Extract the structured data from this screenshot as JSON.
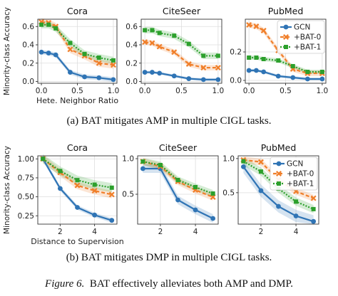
{
  "figure": {
    "caption_a": "(a) BAT mitigates AMP in multiple CIGL tasks.",
    "caption_b": "(b) BAT mitigates DMP in multiple CIGL tasks.",
    "fig_label": "Figure 6.",
    "fig_text": "BAT effectively alleviates both AMP and DMP."
  },
  "colors": {
    "GCN": "#2f74b5",
    "BAT-0": "#f07f2a",
    "BAT-1": "#2ca02c"
  },
  "chart_data": [
    {
      "type": "line",
      "row": "a",
      "title": "Cora",
      "xlabel": "Hete. Neighbor Ratio",
      "ylabel": "Minority-class Accuracy",
      "x": [
        0.0,
        0.1,
        0.2,
        0.4,
        0.6,
        0.8,
        1.0
      ],
      "xticks": [
        0.0,
        0.5,
        1.0
      ],
      "xticklabels": [
        "0.0",
        "0.5",
        "1.0"
      ],
      "yticks": [
        0.0,
        0.2,
        0.4,
        0.6
      ],
      "yticklabels": [
        "0.0",
        "0.2",
        "0.4",
        "0.6"
      ],
      "xlim": [
        -0.05,
        1.05
      ],
      "ylim": [
        -0.02,
        0.68
      ],
      "grid": true,
      "legend": false,
      "series": [
        {
          "name": "GCN",
          "values": [
            0.32,
            0.31,
            0.29,
            0.1,
            0.05,
            0.04,
            0.02
          ],
          "band": 0.025
        },
        {
          "name": "+BAT-0",
          "values": [
            0.65,
            0.64,
            0.6,
            0.35,
            0.28,
            0.2,
            0.18
          ],
          "band": 0.04
        },
        {
          "name": "+BAT-1",
          "values": [
            0.62,
            0.62,
            0.58,
            0.42,
            0.3,
            0.26,
            0.23
          ],
          "band": 0.04
        }
      ]
    },
    {
      "type": "line",
      "row": "a",
      "title": "CiteSeer",
      "xlabel": "",
      "ylabel": "",
      "x": [
        0.0,
        0.1,
        0.2,
        0.4,
        0.6,
        0.8,
        1.0
      ],
      "xticks": [
        0.0,
        0.5,
        1.0
      ],
      "xticklabels": [
        "0.0",
        "0.5",
        "1.0"
      ],
      "yticks": [
        0.0,
        0.2,
        0.4,
        0.6
      ],
      "yticklabels": [
        "0.0",
        "0.2",
        "0.4",
        "0.6"
      ],
      "xlim": [
        -0.05,
        1.05
      ],
      "ylim": [
        -0.02,
        0.68
      ],
      "grid": true,
      "legend": false,
      "series": [
        {
          "name": "GCN",
          "values": [
            0.1,
            0.1,
            0.09,
            0.06,
            0.03,
            0.02,
            0.02
          ],
          "band": 0.015
        },
        {
          "name": "+BAT-0",
          "values": [
            0.43,
            0.42,
            0.38,
            0.32,
            0.19,
            0.15,
            0.15
          ],
          "band": 0.03
        },
        {
          "name": "+BAT-1",
          "values": [
            0.56,
            0.56,
            0.53,
            0.5,
            0.41,
            0.28,
            0.28
          ],
          "band": 0.035
        }
      ]
    },
    {
      "type": "line",
      "row": "a",
      "title": "PubMed",
      "xlabel": "",
      "ylabel": "",
      "x": [
        0.0,
        0.1,
        0.2,
        0.4,
        0.6,
        0.8,
        1.0
      ],
      "xticks": [
        0.0,
        0.5,
        1.0
      ],
      "xticklabels": [
        "0.0",
        "0.5",
        "1.0"
      ],
      "yticks": [
        0.0,
        0.2
      ],
      "yticklabels": [
        "0.0",
        "0.2"
      ],
      "xlim": [
        -0.05,
        1.05
      ],
      "ylim": [
        -0.02,
        0.43
      ],
      "grid": true,
      "legend": "top-right",
      "series": [
        {
          "name": "GCN",
          "values": [
            0.07,
            0.07,
            0.06,
            0.03,
            0.02,
            0.01,
            0.01
          ],
          "band": 0.01
        },
        {
          "name": "+BAT-0",
          "values": [
            0.39,
            0.38,
            0.35,
            0.21,
            0.08,
            0.05,
            0.05
          ],
          "band": 0.02
        },
        {
          "name": "+BAT-1",
          "values": [
            0.16,
            0.16,
            0.15,
            0.14,
            0.1,
            0.06,
            0.06
          ],
          "band": 0.015
        }
      ]
    },
    {
      "type": "line",
      "row": "b",
      "title": "Cora",
      "xlabel": "Distance to Supervision",
      "ylabel": "Minority-class Accuracy",
      "x": [
        1,
        2,
        3,
        4,
        5
      ],
      "xticks": [
        2,
        4
      ],
      "xticklabels": [
        "2",
        "4"
      ],
      "yticks": [
        0.25,
        0.5,
        0.75,
        1.0
      ],
      "yticklabels": [
        "0.25",
        "0.50",
        "0.75",
        "1.00"
      ],
      "xlim": [
        0.7,
        5.3
      ],
      "ylim": [
        0.14,
        1.04
      ],
      "grid": true,
      "legend": false,
      "series": [
        {
          "name": "GCN",
          "values": [
            1.0,
            0.61,
            0.36,
            0.26,
            0.19
          ],
          "band": 0.03
        },
        {
          "name": "+BAT-0",
          "values": [
            1.0,
            0.82,
            0.65,
            0.58,
            0.53
          ],
          "band": 0.05
        },
        {
          "name": "+BAT-1",
          "values": [
            1.0,
            0.84,
            0.72,
            0.66,
            0.62
          ],
          "band": 0.06
        }
      ]
    },
    {
      "type": "line",
      "row": "b",
      "title": "CiteSeer",
      "xlabel": "",
      "ylabel": "",
      "x": [
        1,
        2,
        3,
        4,
        5
      ],
      "xticks": [
        2,
        4
      ],
      "xticklabels": [
        "2",
        "4"
      ],
      "yticks": [
        0.5,
        1.0
      ],
      "yticklabels": [
        "0.5",
        "1.0"
      ],
      "xlim": [
        0.7,
        5.3
      ],
      "ylim": [
        0.08,
        1.04
      ],
      "grid": true,
      "legend": false,
      "series": [
        {
          "name": "GCN",
          "values": [
            0.86,
            0.86,
            0.42,
            0.28,
            0.16
          ],
          "band": 0.06
        },
        {
          "name": "+BAT-0",
          "values": [
            0.96,
            0.89,
            0.68,
            0.56,
            0.46
          ],
          "band": 0.05
        },
        {
          "name": "+BAT-1",
          "values": [
            0.96,
            0.91,
            0.7,
            0.6,
            0.51
          ],
          "band": 0.05
        }
      ]
    },
    {
      "type": "line",
      "row": "b",
      "title": "PubMed",
      "xlabel": "",
      "ylabel": "",
      "x": [
        1,
        2,
        3,
        4,
        5
      ],
      "xticks": [
        2,
        4
      ],
      "xticklabels": [
        "2",
        "4"
      ],
      "yticks": [
        0.5,
        1.0
      ],
      "yticklabels": [
        "0.5",
        "1.0"
      ],
      "xlim": [
        0.7,
        5.3
      ],
      "ylim": [
        0.04,
        1.04
      ],
      "grid": true,
      "legend": "top-right",
      "series": [
        {
          "name": "GCN",
          "values": [
            0.88,
            0.53,
            0.3,
            0.16,
            0.08
          ],
          "band": 0.09
        },
        {
          "name": "+BAT-0",
          "values": [
            0.98,
            0.95,
            0.69,
            0.52,
            0.42
          ],
          "band": 0.05
        },
        {
          "name": "+BAT-1",
          "values": [
            0.96,
            0.81,
            0.56,
            0.37,
            0.26
          ],
          "band": 0.06
        }
      ]
    }
  ]
}
